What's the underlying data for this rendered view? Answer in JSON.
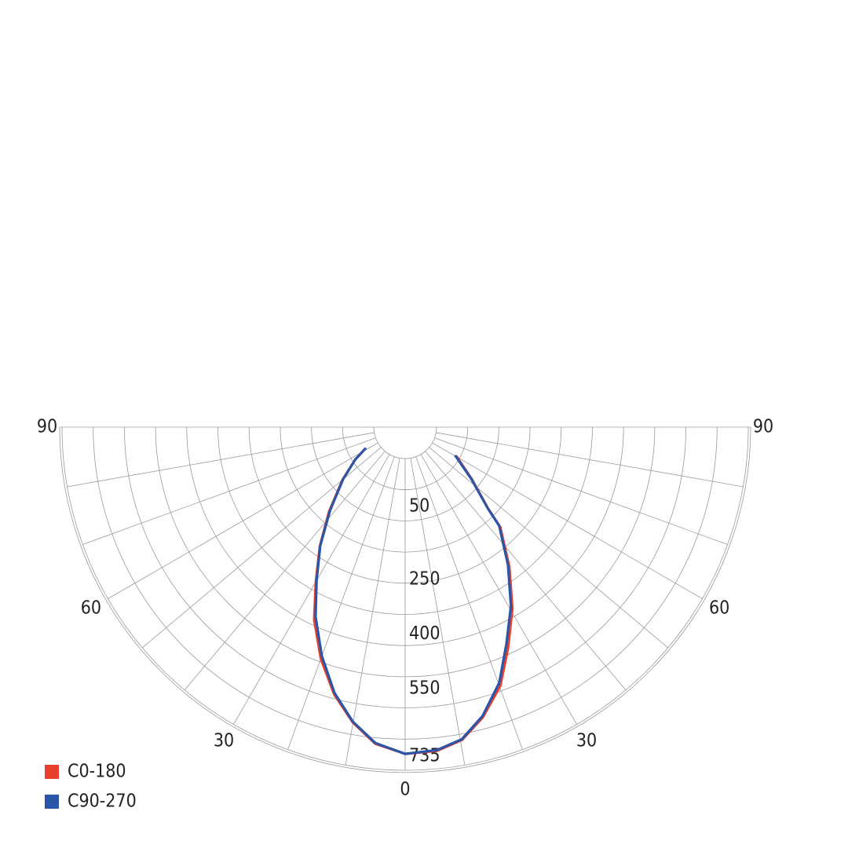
{
  "chart_data": {
    "type": "polar",
    "x": [
      -62,
      -57,
      -50,
      -42,
      -35.6,
      -30,
      -25.3,
      -20,
      -14.9,
      -10.1,
      -5.4,
      0,
      5.6,
      10.3,
      15,
      20.2,
      25,
      30.6,
      36.7,
      43.6,
      45.5,
      52,
      60.6
    ],
    "series": [
      {
        "name": "C0-180",
        "color": "#e8402f",
        "values": [
          -84,
          -43,
          18,
          106,
          196,
          284,
          378,
          470,
          552,
          616,
          666,
          690,
          686,
          666,
          618,
          550,
          462,
          372,
          272,
          172,
          114,
          26,
          -45
        ]
      },
      {
        "name": "C90-270",
        "color": "#2a55a8",
        "values": [
          -84,
          -43,
          16,
          102,
          194,
          280,
          369,
          462,
          548,
          614,
          664,
          690,
          684,
          664,
          614,
          541,
          451,
          364,
          266,
          168,
          112,
          24,
          -49
        ]
      }
    ],
    "rlim": [
      -206,
      735
    ],
    "rticks": [
      50,
      250,
      400,
      550,
      735
    ],
    "xticks": [
      {
        "value": -90,
        "label": "90"
      },
      {
        "value": -60,
        "label": "60"
      },
      {
        "value": -30,
        "label": "30"
      },
      {
        "value": 0,
        "label": "0"
      },
      {
        "value": 30,
        "label": "30"
      },
      {
        "value": 60,
        "label": "60"
      },
      {
        "value": 90,
        "label": "90"
      }
    ],
    "legend": "bottom-left"
  }
}
